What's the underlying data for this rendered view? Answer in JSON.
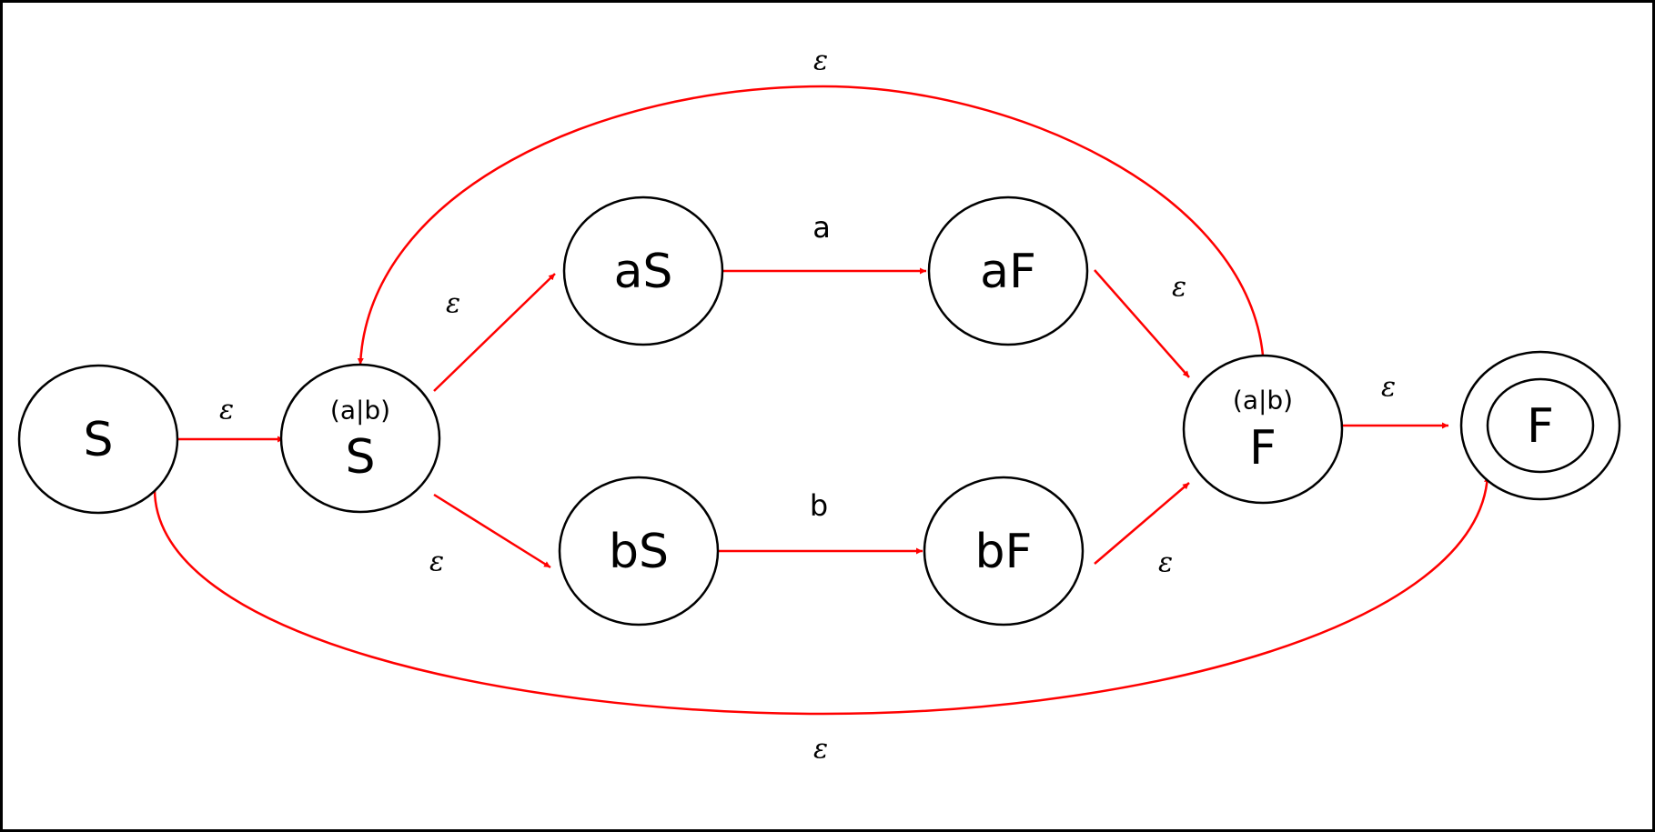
{
  "colors": {
    "edge": "#ff0000",
    "stroke": "#000000",
    "background": "#ffffff"
  },
  "states": {
    "start": {
      "label": "S",
      "accepting": false
    },
    "union_start": {
      "sub": "(a|b)",
      "label": "S",
      "accepting": false
    },
    "a_start": {
      "label": "aS",
      "accepting": false
    },
    "a_final": {
      "label": "aF",
      "accepting": false
    },
    "b_start": {
      "label": "bS",
      "accepting": false
    },
    "b_final": {
      "label": "bF",
      "accepting": false
    },
    "union_final": {
      "sub": "(a|b)",
      "label": "F",
      "accepting": false
    },
    "final": {
      "label": "F",
      "accepting": true
    }
  },
  "edges": {
    "start_to_union_start": {
      "from": "start",
      "to": "union_start",
      "label": "ε"
    },
    "union_start_to_a_start": {
      "from": "union_start",
      "to": "a_start",
      "label": "ε"
    },
    "union_start_to_b_start": {
      "from": "union_start",
      "to": "b_start",
      "label": "ε"
    },
    "a_start_to_a_final": {
      "from": "a_start",
      "to": "a_final",
      "label": "a"
    },
    "b_start_to_b_final": {
      "from": "b_start",
      "to": "b_final",
      "label": "b"
    },
    "a_final_to_union_final": {
      "from": "a_final",
      "to": "union_final",
      "label": "ε"
    },
    "b_final_to_union_final": {
      "from": "b_final",
      "to": "union_final",
      "label": "ε"
    },
    "union_final_to_final": {
      "from": "union_final",
      "to": "final",
      "label": "ε"
    },
    "loop_union_final_to_union_start": {
      "from": "union_final",
      "to": "union_start",
      "label": "ε"
    },
    "skip_start_to_final": {
      "from": "start",
      "to": "final",
      "label": "ε"
    }
  }
}
